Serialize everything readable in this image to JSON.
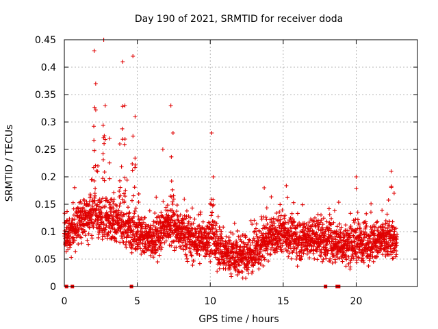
{
  "chart_data": {
    "type": "scatter",
    "title": "Day 190 of 2021, SRMTID for receiver doda",
    "xlabel": "GPS time / hours",
    "ylabel": "SRMTID / TECUs",
    "xlim": [
      0,
      24.2
    ],
    "ylim": [
      0,
      0.45
    ],
    "xticks": [
      0,
      5,
      10,
      15,
      20
    ],
    "xtick_labels": [
      "0",
      "5",
      "10",
      "15",
      "20"
    ],
    "yticks": [
      0,
      0.05,
      0.1,
      0.15,
      0.2,
      0.25,
      0.3,
      0.35,
      0.4,
      0.45
    ],
    "ytick_labels": [
      "0",
      "0.05",
      "0.1",
      "0.15",
      "0.2",
      "0.25",
      "0.3",
      "0.35",
      "0.4",
      "0.45"
    ],
    "grid": true,
    "marker": "+",
    "color": "#e00000",
    "zero_markers_x": [
      0.15,
      0.55,
      4.6,
      17.9,
      18.7,
      18.8
    ],
    "baseline": [
      [
        0.0,
        0.09
      ],
      [
        1.0,
        0.12
      ],
      [
        2.0,
        0.13
      ],
      [
        3.0,
        0.12
      ],
      [
        4.0,
        0.11
      ],
      [
        5.0,
        0.1
      ],
      [
        6.0,
        0.08
      ],
      [
        7.0,
        0.11
      ],
      [
        8.0,
        0.1
      ],
      [
        9.0,
        0.08
      ],
      [
        10.0,
        0.09
      ],
      [
        11.0,
        0.06
      ],
      [
        12.0,
        0.055
      ],
      [
        13.0,
        0.06
      ],
      [
        14.0,
        0.085
      ],
      [
        15.0,
        0.1
      ],
      [
        16.0,
        0.085
      ],
      [
        17.0,
        0.09
      ],
      [
        18.0,
        0.085
      ],
      [
        19.0,
        0.075
      ],
      [
        20.0,
        0.08
      ],
      [
        21.0,
        0.08
      ],
      [
        22.0,
        0.085
      ],
      [
        22.8,
        0.08
      ]
    ],
    "spikes": [
      {
        "x": 2.05,
        "y": 0.43
      },
      {
        "x": 2.15,
        "y": 0.37
      },
      {
        "x": 2.3,
        "y": 0.22
      },
      {
        "x": 2.7,
        "y": 0.45
      },
      {
        "x": 2.8,
        "y": 0.33
      },
      {
        "x": 3.1,
        "y": 0.27
      },
      {
        "x": 3.8,
        "y": 0.26
      },
      {
        "x": 4.0,
        "y": 0.41
      },
      {
        "x": 4.15,
        "y": 0.33
      },
      {
        "x": 4.7,
        "y": 0.42
      },
      {
        "x": 4.85,
        "y": 0.31
      },
      {
        "x": 6.75,
        "y": 0.25
      },
      {
        "x": 7.3,
        "y": 0.33
      },
      {
        "x": 7.45,
        "y": 0.28
      },
      {
        "x": 10.1,
        "y": 0.28
      },
      {
        "x": 10.2,
        "y": 0.2
      },
      {
        "x": 13.7,
        "y": 0.18
      },
      {
        "x": 20.0,
        "y": 0.2
      },
      {
        "x": 22.4,
        "y": 0.21
      },
      {
        "x": 22.6,
        "y": 0.17
      }
    ],
    "n_points": 2880,
    "x_range": [
      0,
      22.8
    ]
  }
}
